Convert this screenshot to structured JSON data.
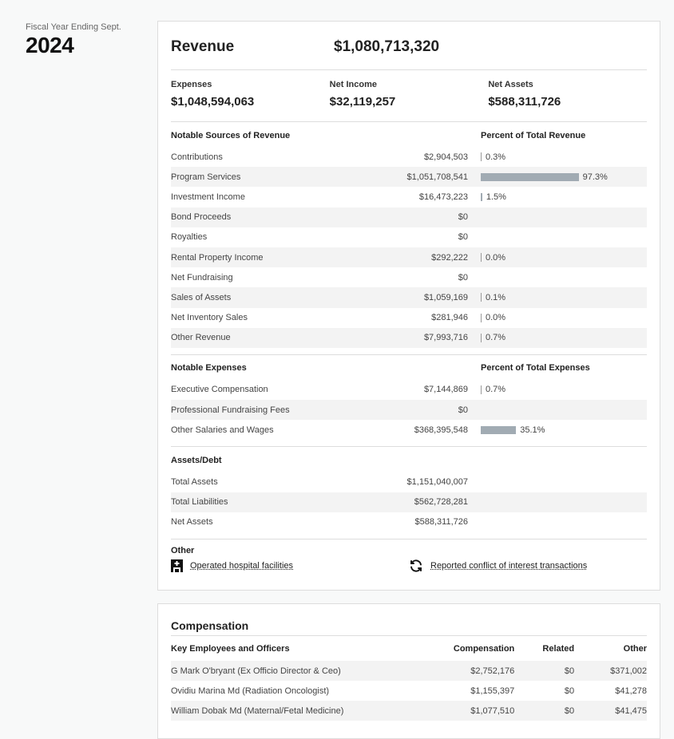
{
  "fiscal": {
    "label": "Fiscal Year Ending Sept.",
    "year": "2024"
  },
  "summary": {
    "revenue_label": "Revenue",
    "revenue": "$1,080,713,320",
    "stats": [
      {
        "label": "Expenses",
        "value": "$1,048,594,063"
      },
      {
        "label": "Net Income",
        "value": "$32,119,257"
      },
      {
        "label": "Net Assets",
        "value": "$588,311,726"
      }
    ]
  },
  "revenue": {
    "title": "Notable Sources of Revenue",
    "pct_title": "Percent of Total Revenue",
    "rows": [
      {
        "name": "Contributions",
        "value": "$2,904,503",
        "pct": "0.3%",
        "pct_num": 0.3
      },
      {
        "name": "Program Services",
        "value": "$1,051,708,541",
        "pct": "97.3%",
        "pct_num": 97.3
      },
      {
        "name": "Investment Income",
        "value": "$16,473,223",
        "pct": "1.5%",
        "pct_num": 1.5
      },
      {
        "name": "Bond Proceeds",
        "value": "$0",
        "pct": "",
        "pct_num": null
      },
      {
        "name": "Royalties",
        "value": "$0",
        "pct": "",
        "pct_num": null
      },
      {
        "name": "Rental Property Income",
        "value": "$292,222",
        "pct": "0.0%",
        "pct_num": 0.0
      },
      {
        "name": "Net Fundraising",
        "value": "$0",
        "pct": "",
        "pct_num": null
      },
      {
        "name": "Sales of Assets",
        "value": "$1,059,169",
        "pct": "0.1%",
        "pct_num": 0.1
      },
      {
        "name": "Net Inventory Sales",
        "value": "$281,946",
        "pct": "0.0%",
        "pct_num": 0.0
      },
      {
        "name": "Other Revenue",
        "value": "$7,993,716",
        "pct": "0.7%",
        "pct_num": 0.7
      }
    ]
  },
  "expenses": {
    "title": "Notable Expenses",
    "pct_title": "Percent of Total Expenses",
    "rows": [
      {
        "name": "Executive Compensation",
        "value": "$7,144,869",
        "pct": "0.7%",
        "pct_num": 0.7
      },
      {
        "name": "Professional Fundraising Fees",
        "value": "$0",
        "pct": "",
        "pct_num": null
      },
      {
        "name": "Other Salaries and Wages",
        "value": "$368,395,548",
        "pct": "35.1%",
        "pct_num": 35.1
      }
    ]
  },
  "assets": {
    "title": "Assets/Debt",
    "rows": [
      {
        "name": "Total Assets",
        "value": "$1,151,040,007"
      },
      {
        "name": "Total Liabilities",
        "value": "$562,728,281"
      },
      {
        "name": "Net Assets",
        "value": "$588,311,726"
      }
    ]
  },
  "other": {
    "title": "Other",
    "links": [
      {
        "label": "Operated hospital facilities",
        "icon": "hospital-icon"
      },
      {
        "label": "Reported conflict of interest transactions",
        "icon": "refresh-icon"
      }
    ]
  },
  "compensation": {
    "title": "Compensation",
    "headers": [
      "Key Employees and Officers",
      "Compensation",
      "Related",
      "Other"
    ],
    "rows": [
      {
        "name": "G Mark O'bryant (Ex Officio Director & Ceo)",
        "comp": "$2,752,176",
        "related": "$0",
        "other": "$371,002"
      },
      {
        "name": "Ovidiu Marina Md (Radiation Oncologist)",
        "comp": "$1,155,397",
        "related": "$0",
        "other": "$41,278"
      },
      {
        "name": "William Dobak Md (Maternal/Fetal Medicine)",
        "comp": "$1,077,510",
        "related": "$0",
        "other": "$41,475"
      }
    ]
  },
  "colors": {
    "bar": "#a1abb3"
  }
}
